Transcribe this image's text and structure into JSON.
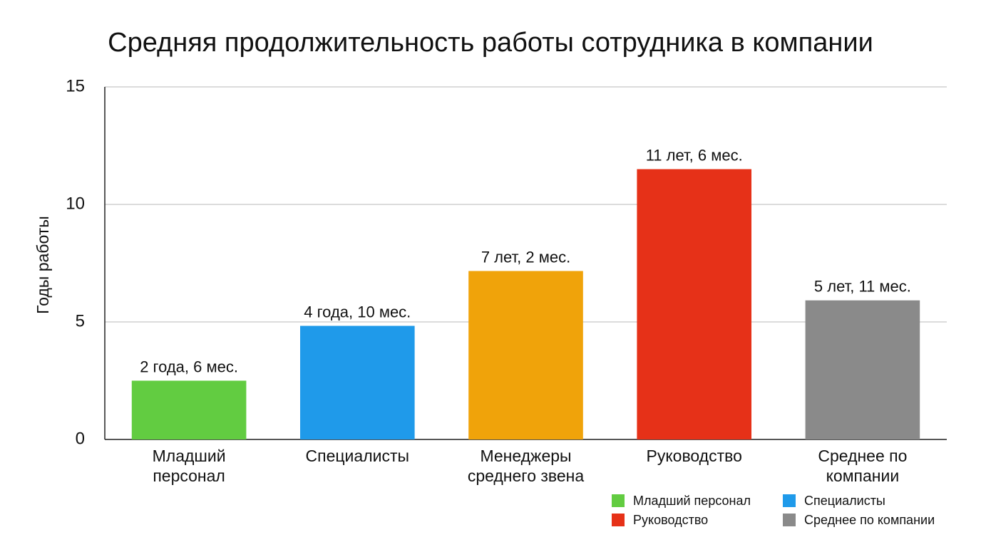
{
  "chart_data": {
    "type": "bar",
    "title": "Средняя продолжительность работы сотрудника в компании",
    "y_label": "Годы работы",
    "categories": [
      "Младший персонал",
      "Специалисты",
      "Менеджеры среднего звена",
      "Руководство",
      "Среднее по компании"
    ],
    "values": [
      2.5,
      4.833,
      7.167,
      11.5,
      5.917
    ],
    "value_labels": [
      "2 года, 6 мес.",
      "4 года, 10 мес.",
      "7 лет, 2 мес.",
      "11 лет, 6 мес.",
      "5 лет, 11 мес."
    ],
    "colors": [
      "#62cc41",
      "#1f9aea",
      "#f0a30a",
      "#e63118",
      "#8a8a8a"
    ],
    "ylim": [
      0,
      15
    ],
    "yticks": [
      0,
      5,
      10,
      15
    ],
    "grid": true,
    "legend": [
      {
        "name": "Младший персонал",
        "color": "#62cc41"
      },
      {
        "name": "Руководство",
        "color": "#e63118"
      },
      {
        "name": "Специалисты",
        "color": "#1f9aea"
      },
      {
        "name": "Среднее по компании",
        "color": "#8a8a8a"
      }
    ]
  }
}
